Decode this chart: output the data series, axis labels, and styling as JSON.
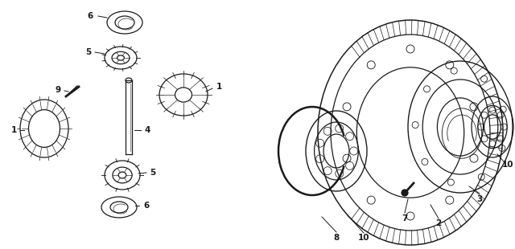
{
  "bg_color": "#ffffff",
  "line_color": "#1a1a1a",
  "fig_width": 6.4,
  "fig_height": 3.1,
  "dpi": 100
}
